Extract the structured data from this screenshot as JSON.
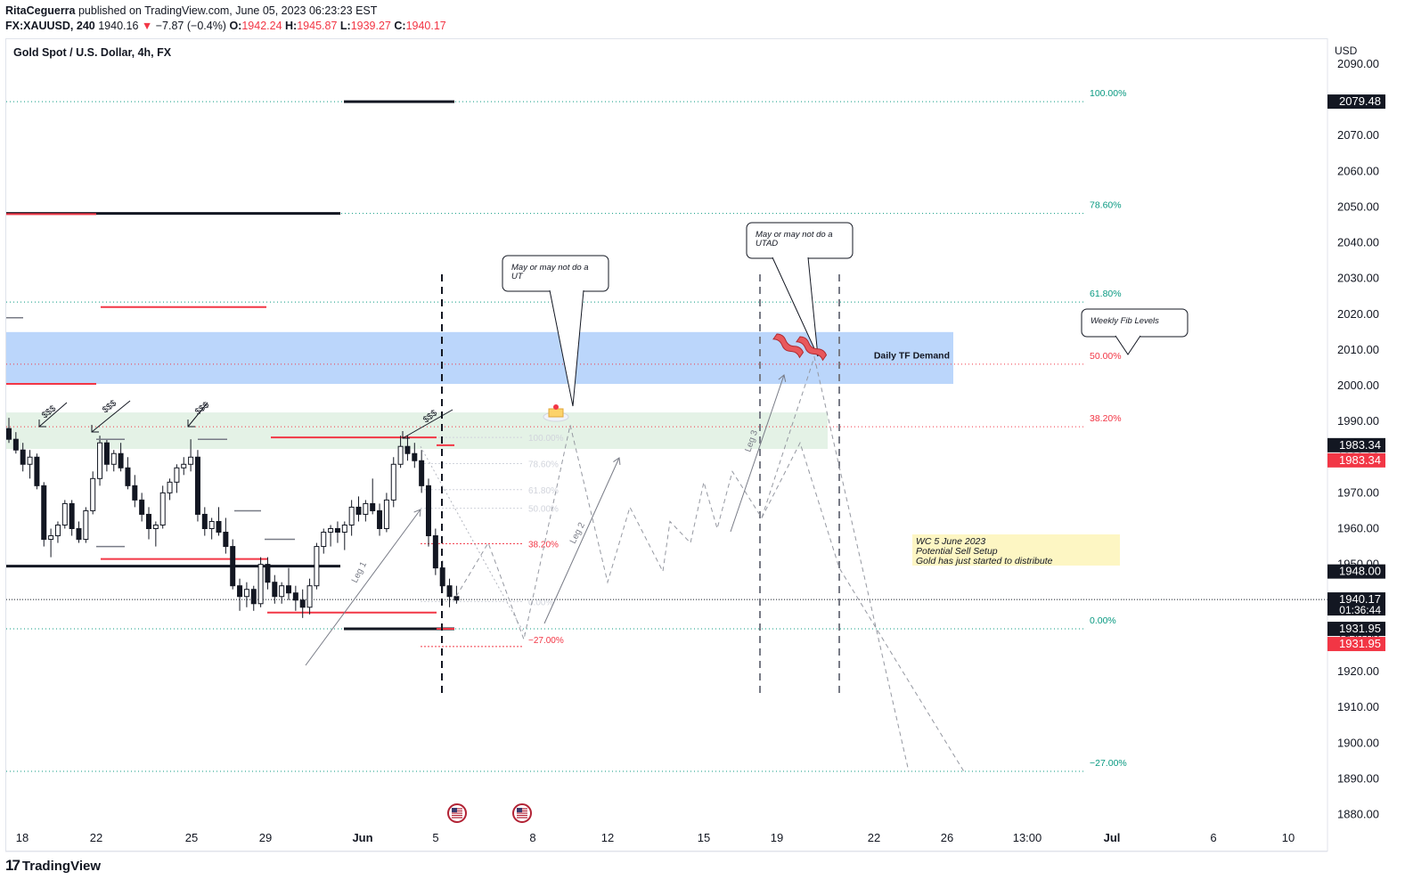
{
  "header": {
    "author": "RitaCeguerra",
    "published_text": "published on TradingView.com, June 05, 2023 06:23:23 EST",
    "symbol": "FX:XAUUSD, 240",
    "last": "1940.16",
    "arrow": "▼",
    "change": "−7.87 (−0.4%)",
    "o_label": "O:",
    "o": "1942.24",
    "h_label": "H:",
    "h": "1945.87",
    "l_label": "L:",
    "l": "1939.27",
    "c_label": "C:",
    "c": "1940.17"
  },
  "title": "Gold Spot / U.S. Dollar, 4h, FX",
  "footer": {
    "brand": "TradingView",
    "mark": "17"
  },
  "colors": {
    "up": "#ffffff",
    "down": "#131722",
    "red": "#f23645",
    "teal": "#089981",
    "demand": "#bbd6fb",
    "green_zone": "#e4f2e6",
    "note": "#fdf6c3"
  },
  "chart_data": {
    "type": "candlestick",
    "currency": "USD",
    "ylim": [
      1875,
      2095
    ],
    "y_ticks": [
      1880,
      1890,
      1900,
      1910,
      1920,
      1930,
      1940,
      1950,
      1960,
      1970,
      1980,
      1990,
      2000,
      2010,
      2020,
      2030,
      2040,
      2050,
      2060,
      2070,
      2080,
      2090
    ],
    "x_ticks": [
      "18",
      "22",
      "25",
      "29",
      "Jun",
      "5",
      "8",
      "12",
      "15",
      "19",
      "22",
      "26",
      "13:00",
      "Jul",
      "6",
      "10"
    ],
    "price_badges": [
      {
        "value": "2079.48",
        "color": "#131722"
      },
      {
        "value": "1983.34",
        "color": "#131722"
      },
      {
        "value": "1983.34",
        "color": "#f23645"
      },
      {
        "value": "1948.00",
        "color": "#131722"
      },
      {
        "value": "1940.17",
        "sub": "01:36:44",
        "color": "#131722"
      },
      {
        "value": "1931.95",
        "color": "#131722"
      },
      {
        "value": "1931.95",
        "color": "#f23645"
      }
    ],
    "weekly_fib": [
      {
        "label": "100.00%",
        "price": 2079.48,
        "color": "#089981"
      },
      {
        "label": "78.60%",
        "price": 2048.2,
        "color": "#089981"
      },
      {
        "label": "61.80%",
        "price": 2023.4,
        "color": "#089981"
      },
      {
        "label": "50.00%",
        "price": 2006.0,
        "color": "#f23645"
      },
      {
        "label": "38.20%",
        "price": 1988.5,
        "color": "#f23645"
      },
      {
        "label": "0.00%",
        "price": 1931.95,
        "color": "#089981"
      },
      {
        "label": "−27.00%",
        "price": 1892.1,
        "color": "#089981"
      }
    ],
    "local_fib": [
      {
        "label": "100.00%",
        "price": 1985.5,
        "color": "#d1d4dc"
      },
      {
        "label": "78.60%",
        "price": 1978.2,
        "color": "#d1d4dc"
      },
      {
        "label": "61.80%",
        "price": 1970.9,
        "color": "#d1d4dc"
      },
      {
        "label": "50.00%",
        "price": 1965.7,
        "color": "#d1d4dc"
      },
      {
        "label": "38.20%",
        "price": 1955.8,
        "color": "#f23645"
      },
      {
        "label": "0.00%",
        "price": 1939.6,
        "color": "#d1d4dc"
      },
      {
        "label": "−27.00%",
        "price": 1927.0,
        "color": "#f23645"
      }
    ],
    "zones": [
      {
        "label": "Daily TF Demand",
        "from": 2000.5,
        "to": 2015.0
      },
      {
        "label": "",
        "from": 1982.3,
        "to": 1992.5
      }
    ],
    "candles": [
      [
        1988,
        1991,
        1984,
        1985
      ],
      [
        1985,
        1987,
        1981,
        1982
      ],
      [
        1982,
        1984,
        1976,
        1978
      ],
      [
        1978,
        1982,
        1974,
        1980
      ],
      [
        1980,
        1981,
        1971,
        1972
      ],
      [
        1972,
        1973,
        1955,
        1957
      ],
      [
        1957,
        1960,
        1952,
        1958
      ],
      [
        1958,
        1962,
        1956,
        1961
      ],
      [
        1961,
        1968,
        1960,
        1967
      ],
      [
        1967,
        1968,
        1958,
        1960
      ],
      [
        1960,
        1962,
        1956,
        1957
      ],
      [
        1957,
        1966,
        1956,
        1965
      ],
      [
        1965,
        1976,
        1964,
        1974
      ],
      [
        1974,
        1986,
        1972,
        1984
      ],
      [
        1984,
        1985,
        1976,
        1978
      ],
      [
        1978,
        1982,
        1976,
        1981
      ],
      [
        1981,
        1984,
        1976,
        1977
      ],
      [
        1977,
        1980,
        1971,
        1972
      ],
      [
        1972,
        1975,
        1966,
        1968
      ],
      [
        1968,
        1970,
        1962,
        1964
      ],
      [
        1964,
        1966,
        1957,
        1960
      ],
      [
        1960,
        1962,
        1955,
        1961
      ],
      [
        1961,
        1972,
        1960,
        1970
      ],
      [
        1970,
        1974,
        1968,
        1973
      ],
      [
        1973,
        1978,
        1970,
        1977
      ],
      [
        1977,
        1980,
        1975,
        1978
      ],
      [
        1978,
        1985,
        1976,
        1980
      ],
      [
        1980,
        1982,
        1962,
        1964
      ],
      [
        1964,
        1966,
        1958,
        1960
      ],
      [
        1960,
        1963,
        1957,
        1962
      ],
      [
        1962,
        1966,
        1958,
        1959
      ],
      [
        1959,
        1963,
        1953,
        1955
      ],
      [
        1955,
        1957,
        1943,
        1944
      ],
      [
        1944,
        1946,
        1937,
        1941
      ],
      [
        1941,
        1945,
        1938,
        1943
      ],
      [
        1943,
        1944,
        1937,
        1939
      ],
      [
        1939,
        1952,
        1938,
        1950
      ],
      [
        1950,
        1952,
        1943,
        1945
      ],
      [
        1945,
        1947,
        1939,
        1941
      ],
      [
        1941,
        1945,
        1939,
        1944
      ],
      [
        1944,
        1949,
        1940,
        1942
      ],
      [
        1942,
        1944,
        1937,
        1940
      ],
      [
        1940,
        1943,
        1935,
        1938
      ],
      [
        1938,
        1946,
        1936,
        1944
      ],
      [
        1944,
        1956,
        1943,
        1955
      ],
      [
        1955,
        1960,
        1953,
        1959
      ],
      [
        1959,
        1961,
        1955,
        1960
      ],
      [
        1960,
        1962,
        1956,
        1959
      ],
      [
        1959,
        1962,
        1954,
        1961
      ],
      [
        1961,
        1968,
        1958,
        1966
      ],
      [
        1966,
        1969,
        1962,
        1964
      ],
      [
        1964,
        1968,
        1962,
        1967
      ],
      [
        1967,
        1974,
        1964,
        1965
      ],
      [
        1965,
        1967,
        1958,
        1960
      ],
      [
        1960,
        1970,
        1959,
        1968
      ],
      [
        1968,
        1980,
        1966,
        1978
      ],
      [
        1978,
        1986,
        1977,
        1983
      ],
      [
        1983,
        1986,
        1979,
        1981
      ],
      [
        1981,
        1984,
        1977,
        1979
      ],
      [
        1979,
        1982,
        1970,
        1972
      ],
      [
        1972,
        1974,
        1955,
        1958
      ],
      [
        1958,
        1960,
        1947,
        1949
      ],
      [
        1949,
        1951,
        1942,
        1944
      ],
      [
        1944,
        1946,
        1938,
        1941
      ],
      [
        1941,
        1944,
        1939,
        1940
      ]
    ],
    "texts": {
      "ut_callout": [
        "May or may not do a",
        "UT"
      ],
      "utad_callout": [
        "May or may not do a",
        "UTAD"
      ],
      "weekly_callout": "Weekly Fib Levels",
      "note": [
        "WC 5 June 2023",
        "Potential Sell Setup",
        "Gold has just started to distribute"
      ],
      "legs": [
        "Leg 1",
        "Leg 2",
        "Leg 3"
      ],
      "liquidity": "$$$"
    }
  }
}
